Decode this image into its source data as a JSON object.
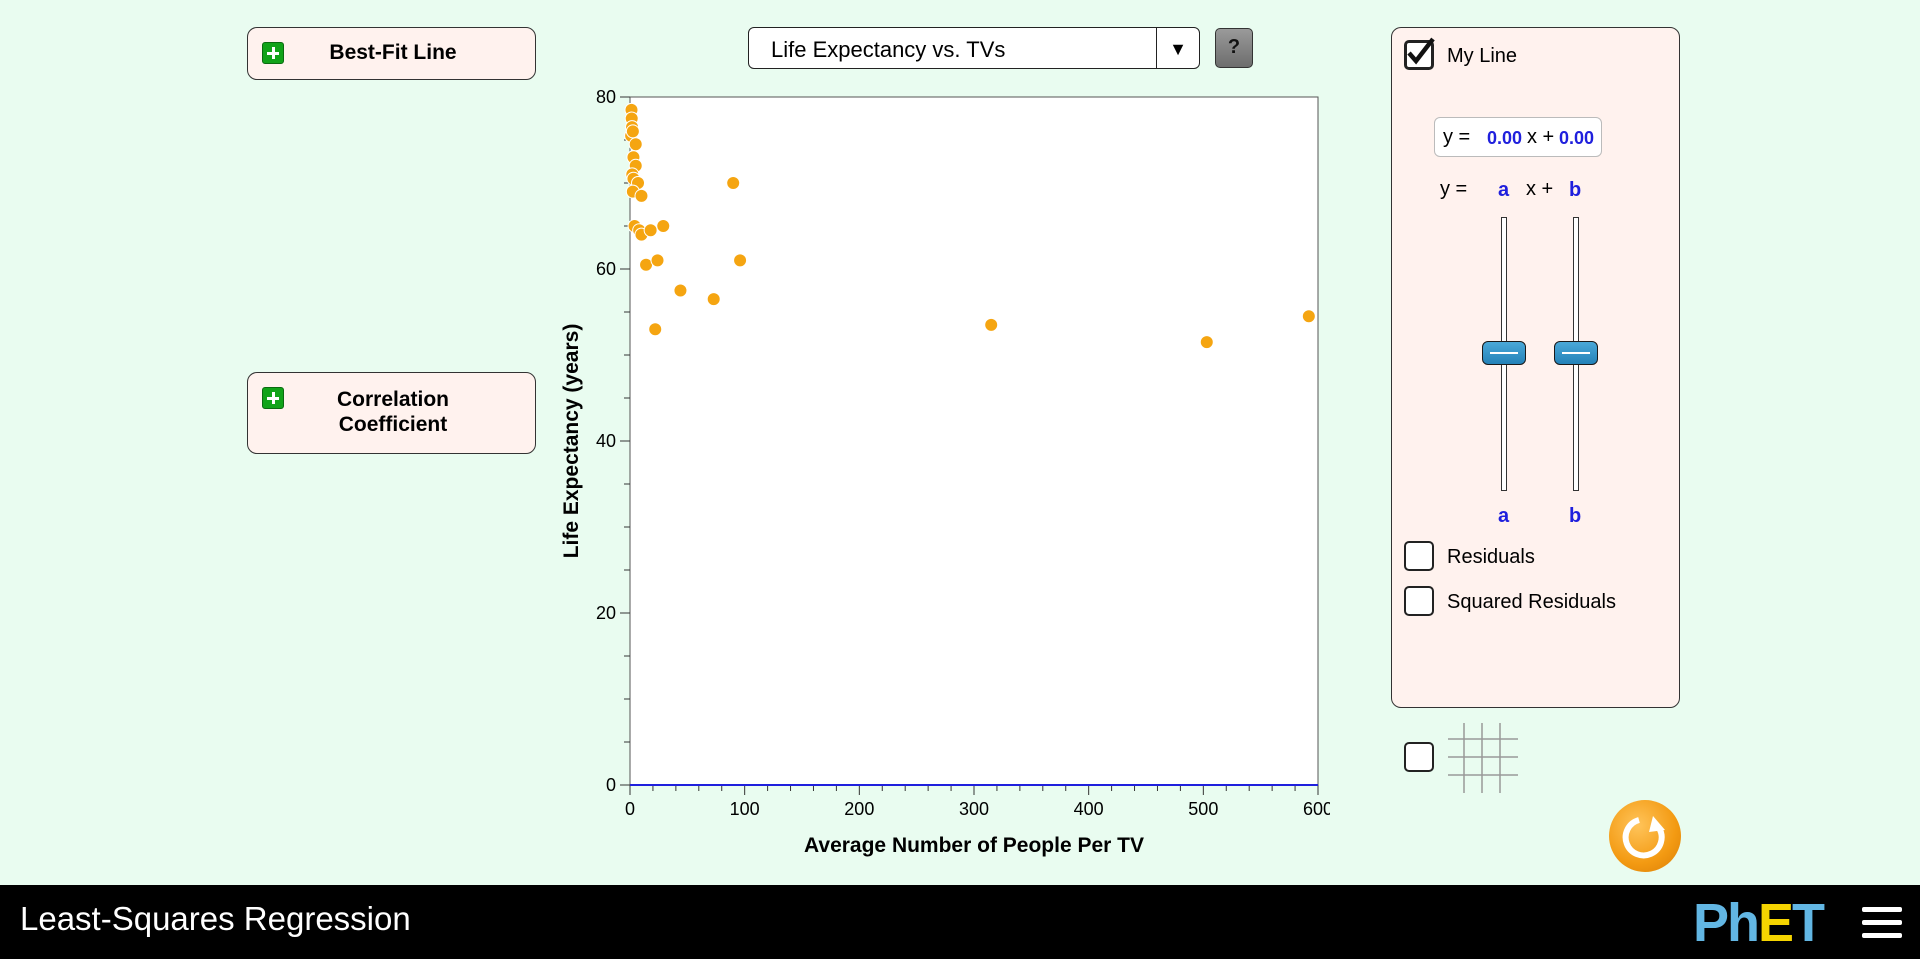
{
  "app": {
    "title": "Least-Squares Regression",
    "brand": "PhET"
  },
  "accordions": {
    "best_fit": {
      "title": "Best-Fit Line"
    },
    "correlation": {
      "title_line1": "Correlation",
      "title_line2": "Coefficient"
    }
  },
  "dataset": {
    "selected": "Life Expectancy vs. TVs"
  },
  "help": {
    "label": "?"
  },
  "my_line_panel": {
    "checkbox_label": "My Line",
    "checked": true,
    "equation": {
      "prefix": "y =",
      "a_value": "0.00",
      "mid": "x +",
      "b_value": "0.00"
    },
    "slider_header": {
      "prefix": "y =",
      "a": "a",
      "mid": "x +",
      "b": "b"
    },
    "slider_a": {
      "label": "a",
      "value": 0.0
    },
    "slider_b": {
      "label": "b",
      "value": 0.0
    },
    "residuals_label": "Residuals",
    "squared_residuals_label": "Squared Residuals"
  },
  "grid_toggle": {
    "checked": false,
    "icon": "grid-icon"
  },
  "colors": {
    "points": "#f5a511",
    "my_line": "#1f1fdd",
    "background": "#e9fcf0",
    "panel": "#fff2ee"
  },
  "chart_data": {
    "type": "scatter",
    "xlabel": "Average Number of People Per TV",
    "ylabel": "Life Expectancy (years)",
    "xlim": [
      0,
      600
    ],
    "ylim": [
      0,
      80
    ],
    "x_ticks": [
      "0",
      "100",
      "200",
      "300",
      "400",
      "500",
      "600"
    ],
    "y_ticks": [
      "0",
      "20",
      "40",
      "60",
      "80"
    ],
    "points": [
      {
        "x": 1.3,
        "y": 78.5
      },
      {
        "x": 1.5,
        "y": 77.5
      },
      {
        "x": 1.8,
        "y": 76.5
      },
      {
        "x": 1.0,
        "y": 75.5
      },
      {
        "x": 2.5,
        "y": 76.0
      },
      {
        "x": 5.0,
        "y": 74.5
      },
      {
        "x": 3.0,
        "y": 73.0
      },
      {
        "x": 5.0,
        "y": 72.0
      },
      {
        "x": 2.0,
        "y": 71.0
      },
      {
        "x": 3.0,
        "y": 70.5
      },
      {
        "x": 7.0,
        "y": 70.0
      },
      {
        "x": 2.5,
        "y": 69.0
      },
      {
        "x": 10.0,
        "y": 68.5
      },
      {
        "x": 90.0,
        "y": 70.0
      },
      {
        "x": 4.0,
        "y": 65.0
      },
      {
        "x": 8.0,
        "y": 64.5
      },
      {
        "x": 10.0,
        "y": 64.0
      },
      {
        "x": 18.0,
        "y": 64.5
      },
      {
        "x": 29.0,
        "y": 65.0
      },
      {
        "x": 14.0,
        "y": 60.5
      },
      {
        "x": 24.0,
        "y": 61.0
      },
      {
        "x": 96.0,
        "y": 61.0
      },
      {
        "x": 44.0,
        "y": 57.5
      },
      {
        "x": 73.0,
        "y": 56.5
      },
      {
        "x": 22.0,
        "y": 53.0
      },
      {
        "x": 315.0,
        "y": 53.5
      },
      {
        "x": 503.0,
        "y": 51.5
      },
      {
        "x": 592.0,
        "y": 54.5
      }
    ],
    "my_line": {
      "a": 0.0,
      "b": 0.0
    }
  }
}
